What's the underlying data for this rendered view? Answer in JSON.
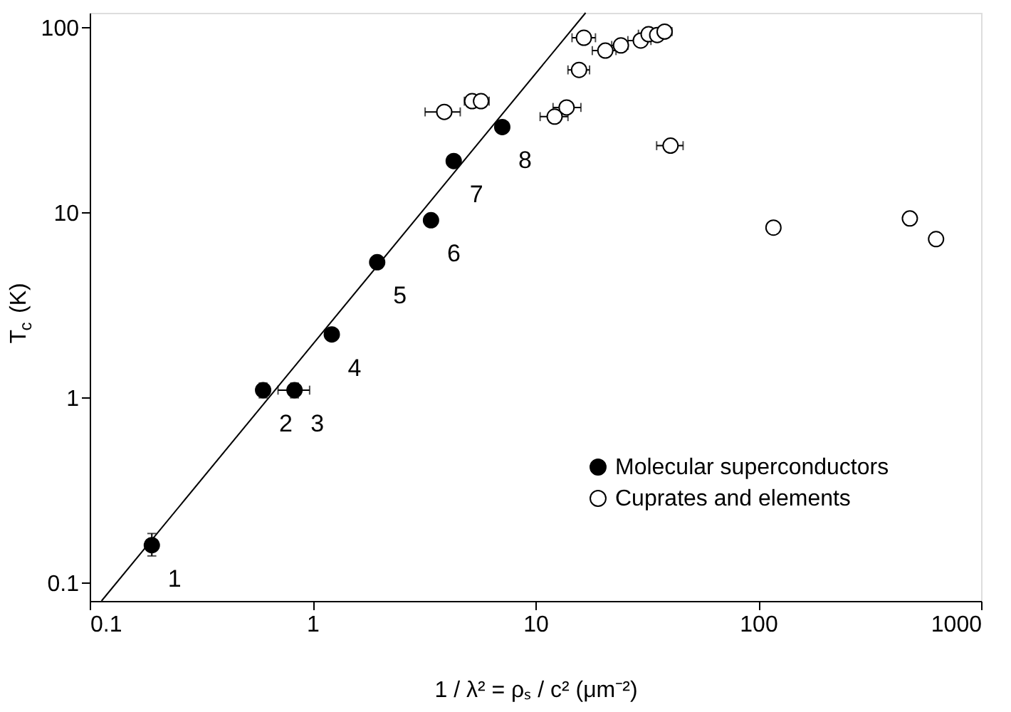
{
  "chart_data": {
    "type": "scatter",
    "xlabel": "1 / λ² = ρₛ / c² (μm⁻²)",
    "ylabel": "T$_{c}$ (K)",
    "log": "xy",
    "xlim": [
      0.1,
      1000
    ],
    "ylim": [
      0.08,
      120
    ],
    "xticks": [
      0.1,
      1,
      10,
      100,
      {
        "value": 1000,
        "label": "1000"
      }
    ],
    "yticks": [
      0.1,
      1,
      10,
      100
    ],
    "grid": false,
    "legend": "bottom right",
    "series": [
      {
        "name": "Molecular superconductors",
        "color": "#000000",
        "marker": "circle",
        "x": [
          0.19,
          0.6,
          0.83,
          1.22,
          1.95,
          3.4,
          4.3,
          7.1
        ],
        "values": [
          0.16,
          1.1,
          1.1,
          2.2,
          5.4,
          9.1,
          19,
          29
        ],
        "errors": [
          [
            0.14,
            0.185
          ],
          [
            1.0,
            1.2
          ],
          [
            1.0,
            1.2
          ],
          null,
          null,
          null,
          null,
          null
        ],
        "xerrors": [
          null,
          null,
          [
            0.7,
            0.97
          ],
          null,
          null,
          null,
          null,
          null
        ]
      },
      {
        "name": "Cuprates and elements",
        "color": "#ffffff",
        "marker": "circle",
        "x": [
          3.9,
          5.2,
          5.7,
          12.2,
          13.8,
          15.7,
          16.5,
          20.6,
          24.2,
          29.7,
          32.2,
          35.2,
          38,
          40.4,
          117,
          479,
          628
        ],
        "values": [
          35,
          40,
          40,
          33,
          37,
          59,
          88,
          75,
          80,
          85,
          92,
          91,
          95,
          23,
          8.3,
          9.3,
          7.2
        ],
        "xerrors": [
          [
            3.2,
            4.6
          ],
          [
            4.8,
            5.6
          ],
          [
            5.3,
            6.2
          ],
          [
            10.5,
            14
          ],
          [
            12,
            16
          ],
          [
            14,
            17.5
          ],
          [
            14.6,
            18.6
          ],
          [
            18,
            23
          ],
          [
            22,
            26
          ],
          [
            26,
            33
          ],
          [
            29,
            35
          ],
          [
            32,
            38
          ],
          [
            35,
            41
          ],
          [
            35,
            46
          ],
          null,
          null,
          null
        ]
      },
      {
        "type": "line",
        "marker": "none",
        "color": "#000000",
        "x": [
          0.113,
          16.8
        ],
        "values": [
          0.08,
          120
        ]
      }
    ],
    "annotations": [
      {
        "text": "1",
        "x": 0.19,
        "y": 0.16
      },
      {
        "text": "2",
        "x": 0.6,
        "y": 1.1
      },
      {
        "text": "3",
        "x": 0.83,
        "y": 1.1
      },
      {
        "text": "4",
        "x": 1.22,
        "y": 2.2
      },
      {
        "text": "5",
        "x": 1.95,
        "y": 5.4
      },
      {
        "text": "6",
        "x": 3.4,
        "y": 9.1
      },
      {
        "text": "7",
        "x": 4.3,
        "y": 19
      },
      {
        "text": "8",
        "x": 7.1,
        "y": 29
      }
    ]
  }
}
